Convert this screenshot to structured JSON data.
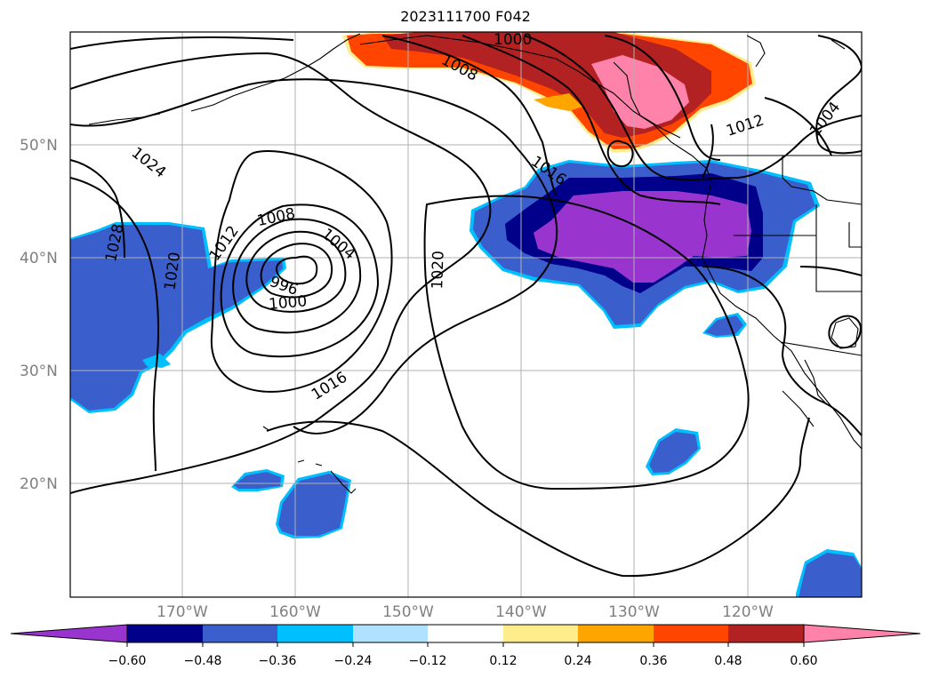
{
  "title": "2023111700 F042",
  "map": {
    "lat_labels": [
      "50°N",
      "40°N",
      "30°N",
      "20°N"
    ],
    "lon_labels": [
      "170°W",
      "160°W",
      "150°W",
      "140°W",
      "130°W",
      "120°W"
    ]
  },
  "contour_labels": [
    "1000",
    "1008",
    "1004",
    "1012",
    "1024",
    "1028",
    "1020",
    "1012",
    "1008",
    "1004",
    "996",
    "1000",
    "1020",
    "1016",
    "1016"
  ],
  "colorbar": {
    "tick_labels": [
      "−0.60",
      "−0.48",
      "−0.36",
      "−0.24",
      "−0.12",
      "0.12",
      "0.24",
      "0.36",
      "0.48",
      "0.60"
    ],
    "colors": [
      "#9a34cf",
      "#00008b",
      "#3a5fcd",
      "#00bfff",
      "#b0e2ff",
      "#ffffff",
      "#ffec8b",
      "#ffa500",
      "#ff4500",
      "#b22222",
      "#ff82ab",
      "#ff82ab"
    ]
  }
}
